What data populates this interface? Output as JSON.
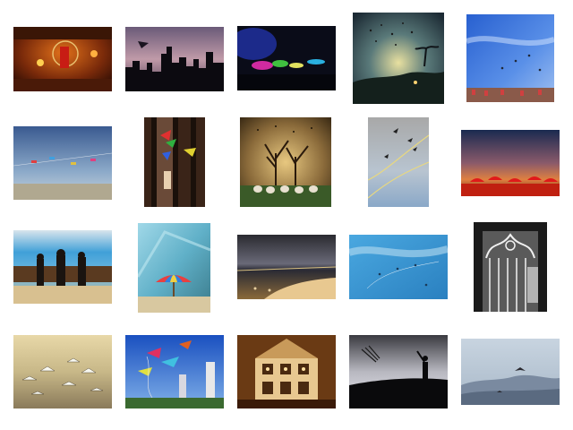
{
  "gallery": {
    "thumbnails": [
      {
        "subject": "carousel-lanterns",
        "icon": "carousel-lantern-photo"
      },
      {
        "subject": "city-skyline-dusk-kite",
        "icon": "city-skyline-photo"
      },
      {
        "subject": "night-lights-umbrellas",
        "icon": "night-lights-photo"
      },
      {
        "subject": "birds-over-island",
        "icon": "island-birds-photo"
      },
      {
        "subject": "kites-over-crowd-blue-sky",
        "icon": "kites-blue-sky-photo"
      },
      {
        "subject": "kites-over-beach",
        "icon": "beach-kites-photo"
      },
      {
        "subject": "wind-spinners-window",
        "icon": "wind-spinners-photo"
      },
      {
        "subject": "trees-sheep-birds",
        "icon": "trees-sheep-photo"
      },
      {
        "subject": "birds-on-kite-lines",
        "icon": "kite-line-birds-photo"
      },
      {
        "subject": "red-umbrellas-sunset",
        "icon": "sunset-umbrellas-photo"
      },
      {
        "subject": "people-on-pier",
        "icon": "pier-people-photo"
      },
      {
        "subject": "beach-umbrella-window",
        "icon": "beach-umbrella-photo"
      },
      {
        "subject": "stormy-beach",
        "icon": "stormy-beach-photo"
      },
      {
        "subject": "kites-blue-sky",
        "icon": "blue-sky-kites-photo"
      },
      {
        "subject": "ornate-gate-bw",
        "icon": "ornate-gate-photo"
      },
      {
        "subject": "seagulls-beach",
        "icon": "seagulls-photo"
      },
      {
        "subject": "kites-city-towers",
        "icon": "city-kites-photo"
      },
      {
        "subject": "dollhouse-interior",
        "icon": "dollhouse-photo"
      },
      {
        "subject": "silhouette-kite-hill",
        "icon": "silhouette-kite-photo"
      },
      {
        "subject": "hawk-over-mountains",
        "icon": "mountain-hawk-photo"
      }
    ]
  }
}
